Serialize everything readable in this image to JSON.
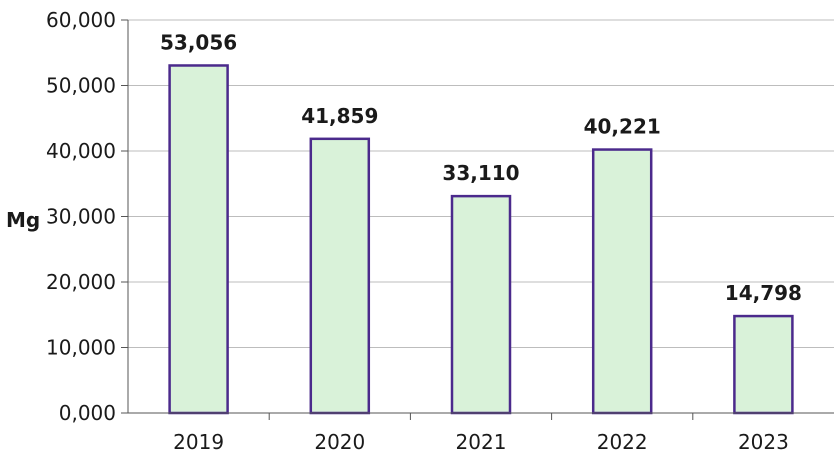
{
  "chart_data": {
    "type": "bar",
    "categories": [
      "2019",
      "2020",
      "2021",
      "2022",
      "2023"
    ],
    "values": [
      53056,
      41859,
      33110,
      40221,
      14798
    ],
    "value_labels": [
      "53,056",
      "41,859",
      "33,110",
      "40,221",
      "14,798"
    ],
    "ylabel": "Mg",
    "ylim": [
      0,
      60000
    ],
    "yticks": [
      0,
      10000,
      20000,
      30000,
      40000,
      50000,
      60000
    ],
    "ytick_labels": [
      "0,000",
      "10,000",
      "20,000",
      "30,000",
      "40,000",
      "50,000",
      "60,000"
    ],
    "grid": true,
    "legend": "none",
    "colors": {
      "bar_fill": "#d9f2d9",
      "bar_stroke": "#4b2a8c",
      "grid": "#bdbdbd",
      "axis": "#555555"
    }
  }
}
